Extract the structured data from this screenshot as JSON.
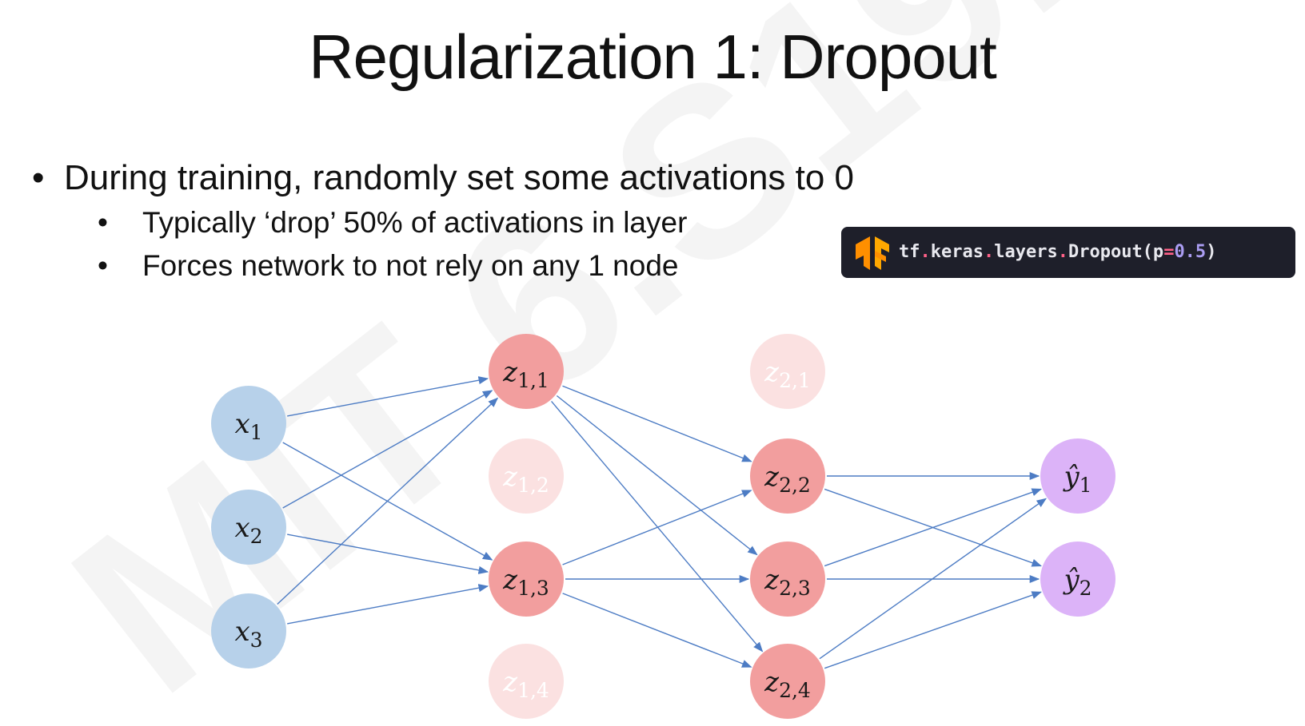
{
  "watermark": {
    "text": "MIT 6.S191"
  },
  "slide": {
    "title": "Regularization 1: Dropout",
    "bullets": {
      "main": "During training, randomly set some activations to 0",
      "sub": [
        "Typically ‘drop’ 50% of activations in layer",
        "Forces network to not rely on any 1 node"
      ]
    }
  },
  "code": {
    "parts": [
      "tf",
      ".",
      "keras",
      ".",
      "layers",
      ".",
      "Dropout(p",
      "=",
      "0.5",
      ")"
    ]
  },
  "colors": {
    "input": "#b7d1ea",
    "hidden": "#f29e9e",
    "hidden_dropped": "#fbe1e1",
    "output": "#dcb3f8",
    "edge": "#4d7cc4",
    "tf_orange": "#ff8f00"
  },
  "network": {
    "layers": [
      {
        "name": "input",
        "nodes": [
          {
            "base": "x",
            "sub": "1",
            "dropped": false
          },
          {
            "base": "x",
            "sub": "2",
            "dropped": false
          },
          {
            "base": "x",
            "sub": "3",
            "dropped": false
          }
        ]
      },
      {
        "name": "hidden1",
        "nodes": [
          {
            "base": "z",
            "sub": "1,1",
            "dropped": false
          },
          {
            "base": "z",
            "sub": "1,2",
            "dropped": true
          },
          {
            "base": "z",
            "sub": "1,3",
            "dropped": false
          },
          {
            "base": "z",
            "sub": "1,4",
            "dropped": true
          }
        ]
      },
      {
        "name": "hidden2",
        "nodes": [
          {
            "base": "z",
            "sub": "2,1",
            "dropped": true
          },
          {
            "base": "z",
            "sub": "2,2",
            "dropped": false
          },
          {
            "base": "z",
            "sub": "2,3",
            "dropped": false
          },
          {
            "base": "z",
            "sub": "2,4",
            "dropped": false
          }
        ]
      },
      {
        "name": "output",
        "nodes": [
          {
            "base": "ŷ",
            "sub": "1",
            "dropped": false
          },
          {
            "base": "ŷ",
            "sub": "2",
            "dropped": false
          }
        ]
      }
    ]
  }
}
